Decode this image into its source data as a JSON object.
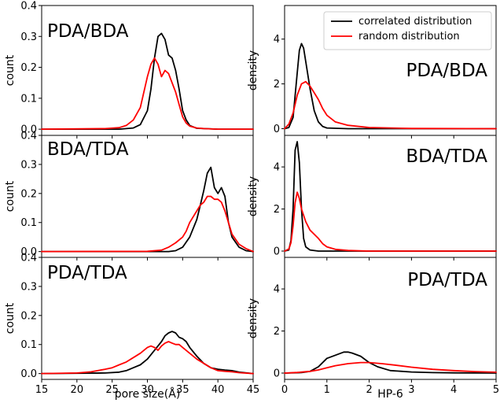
{
  "colors": {
    "correlated": "#000000",
    "random": "#ff0000",
    "frame": "#000000"
  },
  "legend": {
    "placement": "top-right of top-right panel",
    "entries": [
      {
        "label": "correlated distribution",
        "color": "#000000"
      },
      {
        "label": "random distribution",
        "color": "#ff0000"
      }
    ]
  },
  "chart_data": [
    {
      "type": "line",
      "label": "PDA/BDA",
      "ylabel": "count",
      "xlabel": "",
      "xlim": [
        15,
        45
      ],
      "ylim": [
        -0.02,
        0.4
      ],
      "xticks": [
        15,
        20,
        25,
        30,
        35,
        40,
        45
      ],
      "yticks": [
        0.0,
        0.1,
        0.2,
        0.3,
        0.4
      ],
      "ytick_labels": [
        "0.0",
        "0.1",
        "0.2",
        "0.3",
        "0.4"
      ],
      "show_xtick_labels": false,
      "grid": false,
      "series": [
        {
          "key": "correlated",
          "x": [
            15,
            26,
            28,
            29,
            30,
            30.5,
            31,
            31.5,
            32,
            32.5,
            33,
            33.5,
            34,
            34.5,
            35,
            35.5,
            36,
            37,
            40,
            45
          ],
          "y": [
            0.0,
            0.0,
            0.004,
            0.015,
            0.06,
            0.13,
            0.23,
            0.3,
            0.31,
            0.29,
            0.24,
            0.23,
            0.19,
            0.13,
            0.06,
            0.03,
            0.012,
            0.003,
            0.0,
            0.0
          ]
        },
        {
          "key": "random",
          "x": [
            15,
            24,
            26,
            27,
            28,
            29,
            29.5,
            30,
            30.5,
            31,
            31.5,
            32,
            32.5,
            33,
            33.5,
            34,
            34.5,
            35,
            35.5,
            36,
            37,
            38,
            40,
            45
          ],
          "y": [
            0.0,
            0.002,
            0.005,
            0.012,
            0.03,
            0.07,
            0.12,
            0.17,
            0.21,
            0.23,
            0.21,
            0.17,
            0.19,
            0.18,
            0.15,
            0.12,
            0.08,
            0.04,
            0.02,
            0.01,
            0.004,
            0.002,
            0.0,
            0.0
          ]
        }
      ]
    },
    {
      "type": "line",
      "label": "PDA/BDA",
      "ylabel": "density",
      "xlabel": "",
      "xlim": [
        0,
        5
      ],
      "ylim": [
        -0.3,
        5.5
      ],
      "xticks": [
        0,
        1,
        2,
        3,
        4,
        5
      ],
      "yticks": [
        0,
        2,
        4
      ],
      "ytick_labels": [
        "0",
        "2",
        "4"
      ],
      "show_xtick_labels": false,
      "grid": false,
      "series": [
        {
          "key": "correlated",
          "x": [
            0,
            0.1,
            0.2,
            0.3,
            0.35,
            0.4,
            0.45,
            0.5,
            0.6,
            0.7,
            0.8,
            0.9,
            1.0,
            1.5,
            5
          ],
          "y": [
            0,
            0.05,
            0.5,
            2.5,
            3.5,
            3.8,
            3.6,
            3.0,
            1.8,
            0.8,
            0.3,
            0.1,
            0.03,
            0.0,
            0.0
          ]
        },
        {
          "key": "random",
          "x": [
            0,
            0.1,
            0.2,
            0.3,
            0.4,
            0.5,
            0.6,
            0.7,
            0.8,
            0.9,
            1.0,
            1.2,
            1.5,
            2.0,
            3.0,
            5
          ],
          "y": [
            0,
            0.2,
            0.7,
            1.5,
            2.0,
            2.1,
            1.9,
            1.6,
            1.3,
            0.9,
            0.6,
            0.3,
            0.15,
            0.05,
            0.01,
            0.0
          ]
        }
      ]
    },
    {
      "type": "line",
      "label": "BDA/TDA",
      "ylabel": "count",
      "xlabel": "",
      "xlim": [
        15,
        45
      ],
      "ylim": [
        -0.02,
        0.4
      ],
      "xticks": [
        15,
        20,
        25,
        30,
        35,
        40,
        45
      ],
      "yticks": [
        0.0,
        0.1,
        0.2,
        0.3,
        0.4
      ],
      "ytick_labels": [
        "0.0",
        "0.1",
        "0.2",
        "0.3",
        "0.4"
      ],
      "show_xtick_labels": false,
      "grid": false,
      "series": [
        {
          "key": "correlated",
          "x": [
            15,
            33,
            34,
            35,
            36,
            37,
            37.5,
            38,
            38.5,
            39,
            39.5,
            40,
            40.5,
            41,
            41.5,
            42,
            43,
            44,
            45
          ],
          "y": [
            0.0,
            0.0,
            0.003,
            0.015,
            0.05,
            0.11,
            0.16,
            0.21,
            0.27,
            0.29,
            0.22,
            0.2,
            0.22,
            0.19,
            0.1,
            0.05,
            0.015,
            0.003,
            0.0
          ]
        },
        {
          "key": "random",
          "x": [
            15,
            30,
            32,
            33,
            34,
            35,
            35.5,
            36,
            36.5,
            37,
            37.5,
            38,
            38.5,
            39,
            39.5,
            40,
            40.5,
            41,
            41.5,
            42,
            43,
            44,
            45
          ],
          "y": [
            0.0,
            0.001,
            0.005,
            0.015,
            0.03,
            0.05,
            0.07,
            0.1,
            0.12,
            0.14,
            0.16,
            0.17,
            0.19,
            0.19,
            0.18,
            0.18,
            0.17,
            0.14,
            0.1,
            0.06,
            0.025,
            0.01,
            0.0
          ]
        }
      ]
    },
    {
      "type": "line",
      "label": "BDA/TDA",
      "ylabel": "density",
      "xlabel": "",
      "xlim": [
        0,
        5
      ],
      "ylim": [
        -0.3,
        5.5
      ],
      "xticks": [
        0,
        1,
        2,
        3,
        4,
        5
      ],
      "yticks": [
        0,
        2,
        4
      ],
      "ytick_labels": [
        "0",
        "2",
        "4"
      ],
      "show_xtick_labels": false,
      "grid": false,
      "series": [
        {
          "key": "correlated",
          "x": [
            0,
            0.1,
            0.15,
            0.2,
            0.25,
            0.3,
            0.35,
            0.4,
            0.45,
            0.5,
            0.6,
            0.8,
            1.0,
            5
          ],
          "y": [
            0,
            0.05,
            0.5,
            2.0,
            4.8,
            5.2,
            4.2,
            2.0,
            0.6,
            0.2,
            0.05,
            0.0,
            0.0,
            0.0
          ]
        },
        {
          "key": "random",
          "x": [
            0,
            0.1,
            0.15,
            0.2,
            0.25,
            0.3,
            0.35,
            0.4,
            0.5,
            0.6,
            0.7,
            0.8,
            0.9,
            1.0,
            1.2,
            1.5,
            2.0,
            5
          ],
          "y": [
            0,
            0.1,
            0.4,
            1.2,
            2.3,
            2.8,
            2.5,
            2.0,
            1.4,
            1.0,
            0.8,
            0.6,
            0.35,
            0.2,
            0.08,
            0.03,
            0.0,
            0.0
          ]
        }
      ]
    },
    {
      "type": "line",
      "label": "PDA/TDA",
      "ylabel": "count",
      "xlabel": "pore size(Å)",
      "xlim": [
        15,
        45
      ],
      "ylim": [
        -0.02,
        0.4
      ],
      "xticks": [
        15,
        20,
        25,
        30,
        35,
        40,
        45
      ],
      "xtick_labels": [
        "15",
        "20",
        "25",
        "30",
        "35",
        "40",
        "45"
      ],
      "yticks": [
        0.0,
        0.1,
        0.2,
        0.3,
        0.4
      ],
      "ytick_labels": [
        "0.0",
        "0.1",
        "0.2",
        "0.3",
        "0.4"
      ],
      "show_xtick_labels": true,
      "grid": false,
      "series": [
        {
          "key": "correlated",
          "x": [
            15,
            24,
            26,
            27,
            28,
            29,
            30,
            31,
            32,
            32.5,
            33,
            33.5,
            34,
            34.5,
            35,
            35.5,
            36,
            37,
            38,
            39,
            40,
            41,
            42,
            43,
            45
          ],
          "y": [
            0.0,
            0.002,
            0.005,
            0.01,
            0.02,
            0.03,
            0.05,
            0.08,
            0.11,
            0.13,
            0.14,
            0.145,
            0.14,
            0.125,
            0.12,
            0.11,
            0.09,
            0.06,
            0.035,
            0.02,
            0.015,
            0.012,
            0.01,
            0.005,
            0.0
          ]
        },
        {
          "key": "random",
          "x": [
            15,
            20,
            22,
            24,
            25,
            26,
            27,
            28,
            29,
            30,
            30.5,
            31,
            31.5,
            32,
            32.5,
            33,
            33.5,
            34,
            34.5,
            35,
            36,
            37,
            38,
            39,
            40,
            41,
            42,
            43,
            45
          ],
          "y": [
            0.0,
            0.002,
            0.006,
            0.015,
            0.02,
            0.03,
            0.04,
            0.055,
            0.07,
            0.09,
            0.095,
            0.09,
            0.08,
            0.095,
            0.105,
            0.11,
            0.105,
            0.1,
            0.1,
            0.09,
            0.07,
            0.05,
            0.035,
            0.02,
            0.01,
            0.008,
            0.006,
            0.003,
            0.0
          ]
        }
      ]
    },
    {
      "type": "line",
      "label": "PDA/TDA",
      "ylabel": "density",
      "xlabel": "HP-6",
      "xlim": [
        0,
        5
      ],
      "ylim": [
        -0.3,
        5.5
      ],
      "xticks": [
        0,
        1,
        2,
        3,
        4,
        5
      ],
      "xtick_labels": [
        "0",
        "1",
        "2",
        "3",
        "4",
        "5"
      ],
      "yticks": [
        0,
        2,
        4
      ],
      "ytick_labels": [
        "0",
        "2",
        "4"
      ],
      "show_xtick_labels": true,
      "grid": false,
      "series": [
        {
          "key": "correlated",
          "x": [
            0,
            0.4,
            0.6,
            0.8,
            1.0,
            1.2,
            1.4,
            1.5,
            1.6,
            1.8,
            2.0,
            2.2,
            2.5,
            3.0,
            3.5,
            4.0,
            5.0
          ],
          "y": [
            0,
            0.02,
            0.08,
            0.3,
            0.7,
            0.85,
            1.0,
            1.0,
            0.95,
            0.8,
            0.5,
            0.3,
            0.12,
            0.05,
            0.02,
            0.01,
            0.0
          ]
        },
        {
          "key": "random",
          "x": [
            0,
            0.3,
            0.6,
            0.8,
            1.0,
            1.2,
            1.5,
            1.8,
            2.0,
            2.3,
            2.6,
            3.0,
            3.5,
            4.0,
            4.5,
            5.0
          ],
          "y": [
            0,
            0.03,
            0.08,
            0.15,
            0.25,
            0.35,
            0.45,
            0.5,
            0.5,
            0.45,
            0.38,
            0.28,
            0.18,
            0.12,
            0.07,
            0.04
          ]
        }
      ]
    }
  ]
}
